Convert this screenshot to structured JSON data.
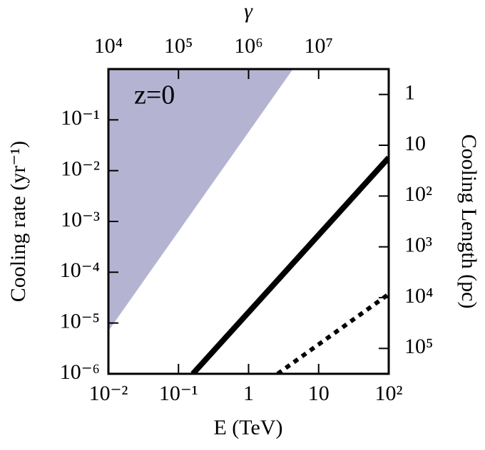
{
  "chart_data": {
    "type": "line",
    "xlabel": "E (TeV)",
    "ylabel": "Cooling rate (yr⁻¹)",
    "x2label": "γ",
    "y2label": "Cooling Length (pc)",
    "annotation": "z=0",
    "xscale": "log",
    "yscale": "log",
    "xlim": [
      0.01,
      100
    ],
    "ylim": [
      1e-06,
      1
    ],
    "xticks": [
      {
        "value": 0.01,
        "label": "10⁻²"
      },
      {
        "value": 0.1,
        "label": "10⁻¹"
      },
      1,
      10,
      {
        "value": 100,
        "label": "10²"
      }
    ],
    "yticks": [
      {
        "value": 1e-06,
        "label": "10⁻⁶"
      },
      {
        "value": 1e-05,
        "label": "10⁻⁵"
      },
      {
        "value": 0.0001,
        "label": "10⁻⁴"
      },
      {
        "value": 0.001,
        "label": "10⁻³"
      },
      {
        "value": 0.01,
        "label": "10⁻²"
      },
      {
        "value": 0.1,
        "label": "10⁻¹"
      }
    ],
    "x2lim": [
      10000,
      100000000
    ],
    "x2ticks": [
      {
        "value": 10000,
        "label": "10⁴"
      },
      {
        "value": 100000,
        "label": "10⁵"
      },
      {
        "value": 1000000,
        "label": "10⁶"
      },
      {
        "value": 10000000,
        "label": "10⁷"
      }
    ],
    "y2lim": [
      316228,
      0.3162
    ],
    "y2ticks": [
      1,
      10,
      {
        "value": 100,
        "label": "10²"
      },
      {
        "value": 1000,
        "label": "10³"
      },
      {
        "value": 10000,
        "label": "10⁴"
      },
      {
        "value": 100000,
        "label": "10⁵"
      }
    ],
    "series": [
      {
        "style": "area",
        "color": "#b4b4d2",
        "x": [
          0.01,
          4.3
        ],
        "values": [
          7e-06,
          1
        ]
      },
      {
        "style": "solid",
        "color": "#000000",
        "x": [
          0.16,
          100
        ],
        "values": [
          1e-06,
          0.018
        ]
      },
      {
        "style": "dotted",
        "color": "#000000",
        "x": [
          2.6,
          100
        ],
        "values": [
          1e-06,
          3.7e-05
        ]
      }
    ]
  }
}
